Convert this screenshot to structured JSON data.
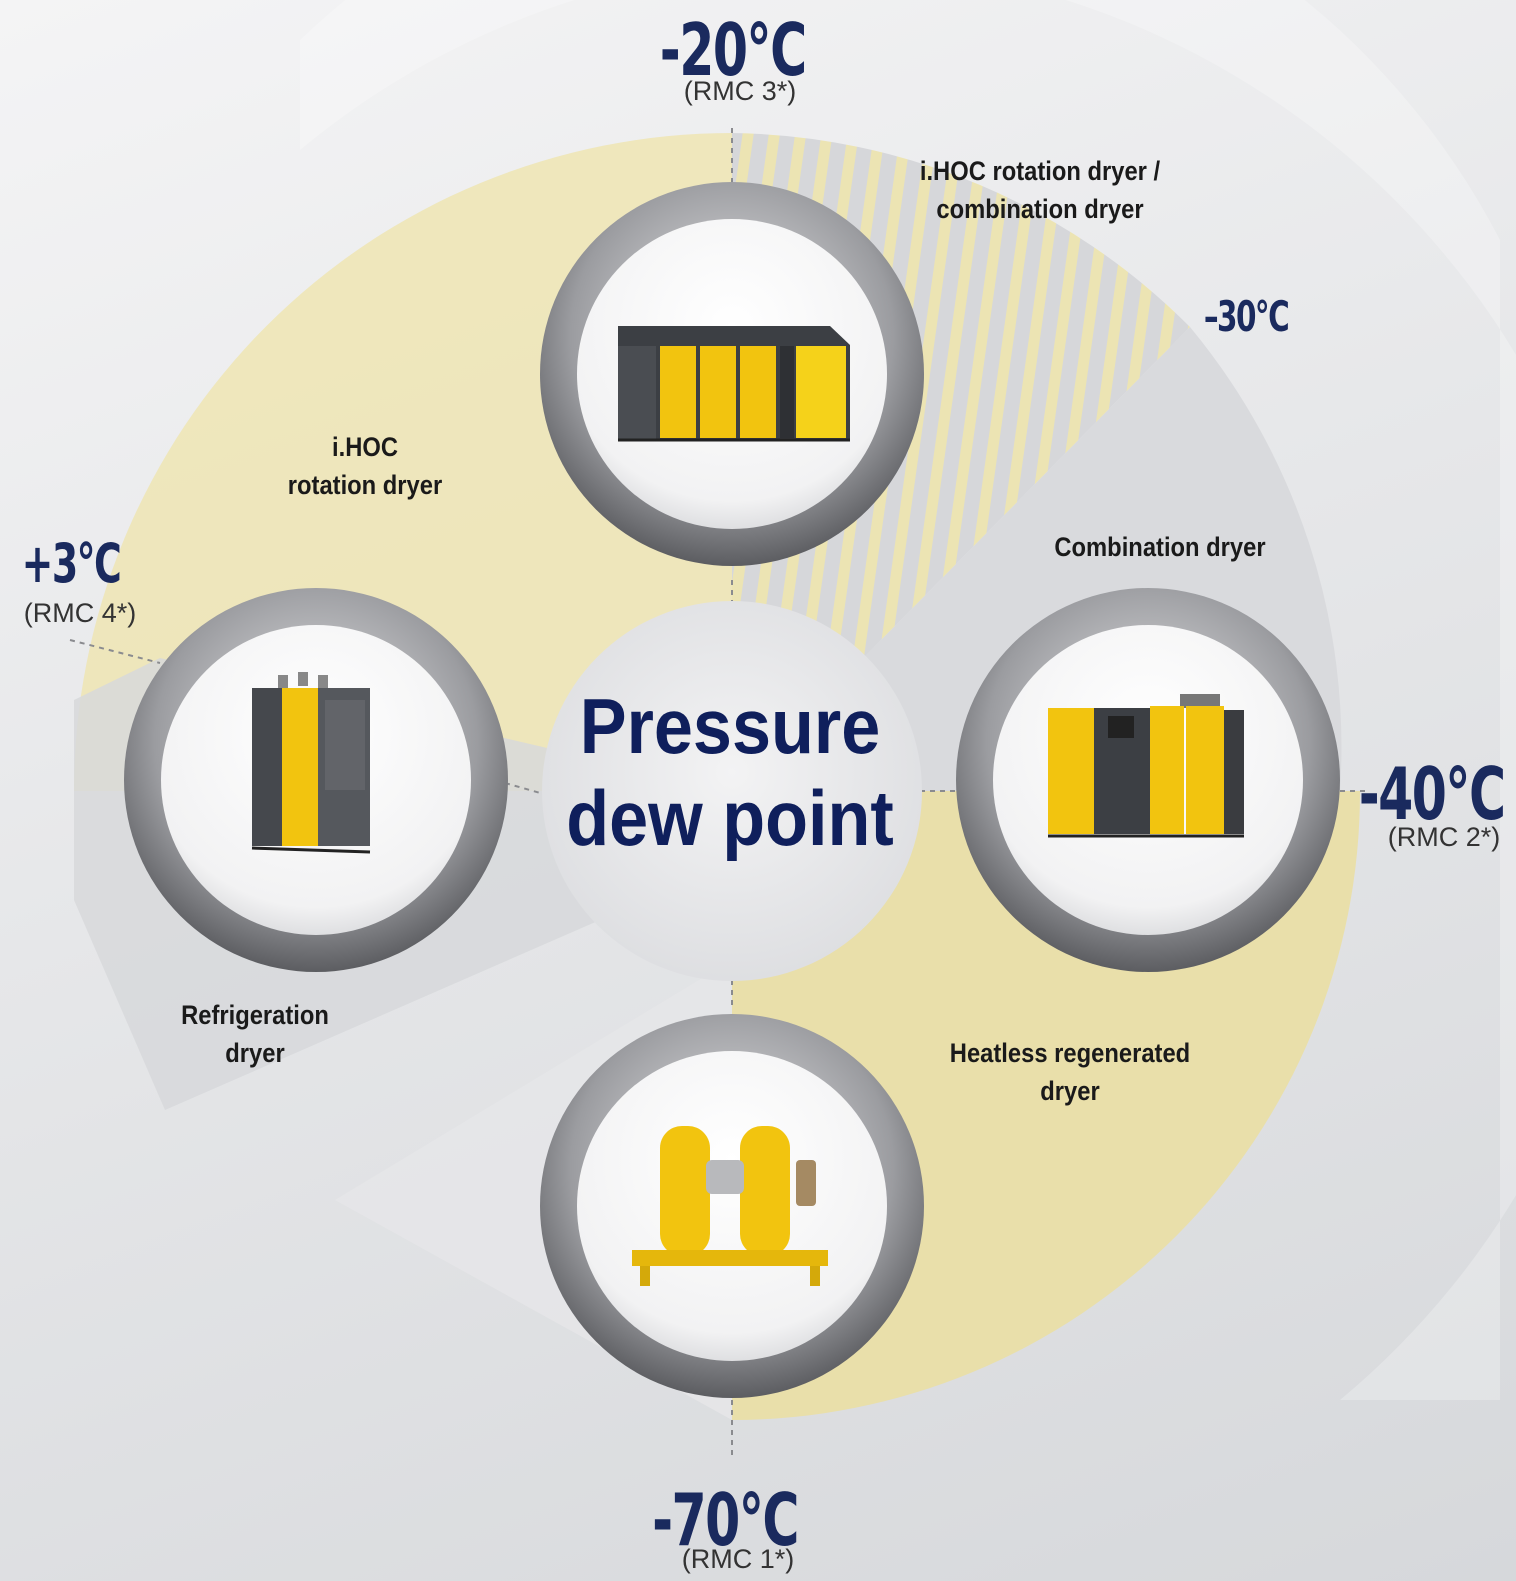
{
  "center": {
    "line1": "Pressure",
    "line2": "dew point"
  },
  "temperatures": {
    "top": {
      "value": "-20°C",
      "rmc": "(RMC 3*)"
    },
    "mid": {
      "value": "–30°C"
    },
    "right": {
      "value": "-40°C",
      "rmc": "(RMC 2*)"
    },
    "bottom": {
      "value": "-70°C",
      "rmc": "(RMC 1*)"
    },
    "left": {
      "value": "+3°C",
      "rmc": "(RMC 4*)"
    }
  },
  "segments": {
    "ihoc_combination": {
      "line1": "i.HOC rotation dryer /",
      "line2": "combination dryer"
    },
    "ihoc": {
      "line1": "i.HOC",
      "line2": "rotation dryer"
    },
    "combination": {
      "line1": "Combination dryer"
    },
    "refrigeration": {
      "line1": "Refrigeration",
      "line2": "dryer"
    },
    "heatless": {
      "line1": "Heatless regenerated",
      "line2": "dryer"
    }
  },
  "colors": {
    "navy": "#1a2a5e",
    "cream": "#efe6b4",
    "light_gray": "#dcdde0",
    "kaeser_yellow": "#f2c40f",
    "machine_dark": "#3c3f44"
  }
}
